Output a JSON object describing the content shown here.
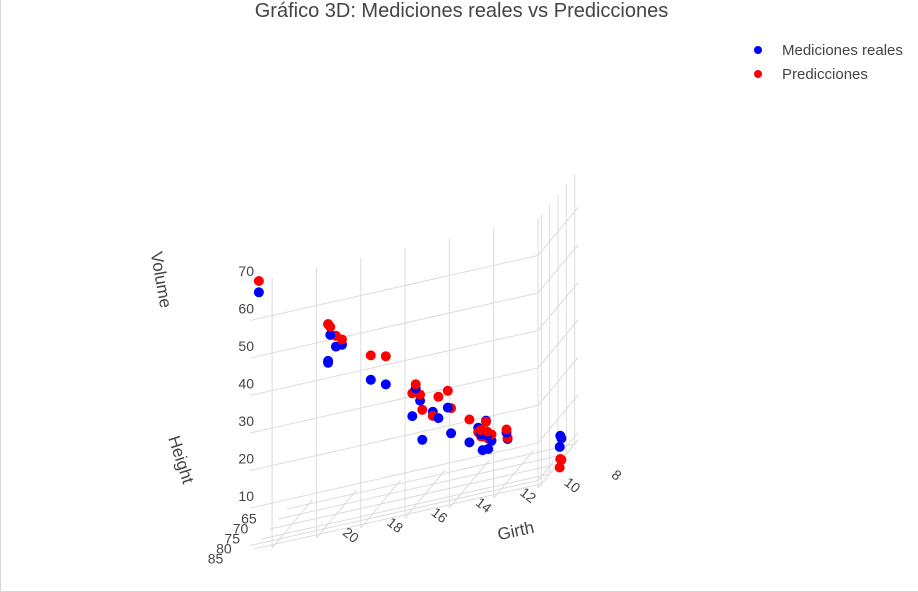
{
  "chart_data": {
    "type": "scatter",
    "projection": "3d",
    "title": "Gráfico 3D: Mediciones reales vs Predicciones",
    "axes": {
      "x": {
        "label": "Girth",
        "ticks": [
          "8",
          "10",
          "12",
          "14",
          "16",
          "18",
          "20"
        ],
        "range": [
          8,
          21
        ]
      },
      "y": {
        "label": "Height",
        "ticks": [
          "65",
          "70",
          "75",
          "80",
          "85"
        ],
        "range": [
          63,
          87
        ]
      },
      "z": {
        "label": "Volume",
        "ticks": [
          "10",
          "20",
          "30",
          "40",
          "50",
          "60",
          "70"
        ],
        "range": [
          8,
          80
        ]
      }
    },
    "legend_position": "top-right",
    "grid": true,
    "series": [
      {
        "name": "Mediciones reales",
        "color": "#0000ff",
        "points": [
          {
            "girth": 8.3,
            "height": 70,
            "volume": 10.3
          },
          {
            "girth": 8.6,
            "height": 65,
            "volume": 10.3
          },
          {
            "girth": 8.8,
            "height": 63,
            "volume": 10.2
          },
          {
            "girth": 10.5,
            "height": 72,
            "volume": 16.4
          },
          {
            "girth": 10.7,
            "height": 81,
            "volume": 18.8
          },
          {
            "girth": 10.8,
            "height": 83,
            "volume": 19.7
          },
          {
            "girth": 11.0,
            "height": 66,
            "volume": 15.6
          },
          {
            "girth": 11.0,
            "height": 75,
            "volume": 18.2
          },
          {
            "girth": 11.1,
            "height": 80,
            "volume": 22.6
          },
          {
            "girth": 11.2,
            "height": 75,
            "volume": 19.9
          },
          {
            "girth": 11.3,
            "height": 79,
            "volume": 24.2
          },
          {
            "girth": 11.4,
            "height": 76,
            "volume": 21.0
          },
          {
            "girth": 11.4,
            "height": 76,
            "volume": 21.4
          },
          {
            "girth": 11.7,
            "height": 69,
            "volume": 21.3
          },
          {
            "girth": 12.0,
            "height": 75,
            "volume": 19.1
          },
          {
            "girth": 12.9,
            "height": 74,
            "volume": 22.2
          },
          {
            "girth": 12.9,
            "height": 85,
            "volume": 33.8
          },
          {
            "girth": 13.3,
            "height": 86,
            "volume": 27.4
          },
          {
            "girth": 13.7,
            "height": 71,
            "volume": 25.7
          },
          {
            "girth": 13.8,
            "height": 64,
            "volume": 24.9
          },
          {
            "girth": 14.0,
            "height": 78,
            "volume": 34.5
          },
          {
            "girth": 14.2,
            "height": 80,
            "volume": 31.7
          },
          {
            "girth": 14.5,
            "height": 74,
            "volume": 36.3
          },
          {
            "girth": 16.0,
            "height": 72,
            "volume": 38.3
          },
          {
            "girth": 16.3,
            "height": 77,
            "volume": 42.6
          },
          {
            "girth": 17.3,
            "height": 81,
            "volume": 55.4
          },
          {
            "girth": 17.5,
            "height": 82,
            "volume": 55.7
          },
          {
            "girth": 17.9,
            "height": 80,
            "volume": 58.3
          },
          {
            "girth": 18.0,
            "height": 80,
            "volume": 51.5
          },
          {
            "girth": 18.0,
            "height": 80,
            "volume": 51.0
          },
          {
            "girth": 20.6,
            "height": 87,
            "volume": 77.0
          }
        ]
      },
      {
        "name": "Predicciones",
        "color": "#ff0000",
        "points": [
          {
            "girth": 8.3,
            "height": 70,
            "volume": 4.8
          },
          {
            "girth": 8.6,
            "height": 65,
            "volume": 4.6
          },
          {
            "girth": 8.8,
            "height": 63,
            "volume": 4.0
          },
          {
            "girth": 10.5,
            "height": 72,
            "volume": 16.7
          },
          {
            "girth": 10.7,
            "height": 81,
            "volume": 21.6
          },
          {
            "girth": 10.8,
            "height": 83,
            "volume": 23.3
          },
          {
            "girth": 11.0,
            "height": 66,
            "volume": 16.4
          },
          {
            "girth": 11.0,
            "height": 75,
            "volume": 19.9
          },
          {
            "girth": 11.1,
            "height": 80,
            "volume": 22.2
          },
          {
            "girth": 11.2,
            "height": 75,
            "volume": 20.9
          },
          {
            "girth": 11.3,
            "height": 79,
            "volume": 23.0
          },
          {
            "girth": 11.4,
            "height": 76,
            "volume": 22.1
          },
          {
            "girth": 11.4,
            "height": 76,
            "volume": 22.1
          },
          {
            "girth": 11.7,
            "height": 69,
            "volume": 21.0
          },
          {
            "girth": 12.0,
            "height": 75,
            "volume": 25.2
          },
          {
            "girth": 12.9,
            "height": 74,
            "volume": 28.9
          },
          {
            "girth": 12.9,
            "height": 85,
            "volume": 32.7
          },
          {
            "girth": 13.3,
            "height": 86,
            "volume": 35.4
          },
          {
            "girth": 13.7,
            "height": 71,
            "volume": 31.4
          },
          {
            "girth": 13.8,
            "height": 64,
            "volume": 29.4
          },
          {
            "girth": 14.0,
            "height": 78,
            "volume": 36.1
          },
          {
            "girth": 14.2,
            "height": 80,
            "volume": 37.8
          },
          {
            "girth": 14.5,
            "height": 74,
            "volume": 37.4
          },
          {
            "girth": 16.0,
            "height": 72,
            "volume": 45.8
          },
          {
            "girth": 16.3,
            "height": 77,
            "volume": 49.1
          },
          {
            "girth": 17.3,
            "height": 81,
            "volume": 56.8
          },
          {
            "girth": 17.5,
            "height": 82,
            "volume": 58.6
          },
          {
            "girth": 17.9,
            "height": 80,
            "volume": 60.4
          },
          {
            "girth": 18.0,
            "height": 80,
            "volume": 61.3
          },
          {
            "girth": 18.0,
            "height": 80,
            "volume": 61.3
          },
          {
            "girth": 20.6,
            "height": 87,
            "volume": 80.0
          }
        ]
      }
    ]
  }
}
